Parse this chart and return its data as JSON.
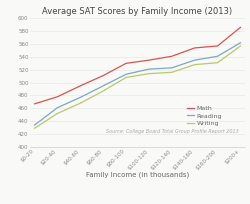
{
  "title": "Average SAT Scores by Family Income (2013)",
  "xlabel": "Family Income (in thousands)",
  "source_text": "Source: College Board Total Group Profile Report 2013",
  "x_labels": [
    "$0-20",
    "$20-40",
    "$40-60",
    "$60-80",
    "$80-100",
    "$100-120",
    "$120-140",
    "$140-160",
    "$160-200",
    "$200+"
  ],
  "math": [
    467,
    478,
    495,
    511,
    530,
    535,
    541,
    554,
    557,
    586
  ],
  "reading": [
    434,
    461,
    477,
    495,
    513,
    521,
    523,
    535,
    541,
    562
  ],
  "writing": [
    429,
    452,
    468,
    487,
    508,
    514,
    516,
    528,
    531,
    557
  ],
  "ylim": [
    400,
    600
  ],
  "yticks": [
    400,
    420,
    440,
    460,
    480,
    500,
    520,
    540,
    560,
    580,
    600
  ],
  "color_math": "#d9534f",
  "color_reading": "#7aa8c7",
  "color_writing": "#b8c96a",
  "background": "#f9f9f7",
  "grid_color": "#e8e8e8",
  "title_fontsize": 6.0,
  "axis_fontsize": 5.0,
  "tick_fontsize": 4.0,
  "legend_fontsize": 4.5,
  "source_fontsize": 3.5,
  "linewidth": 0.9
}
